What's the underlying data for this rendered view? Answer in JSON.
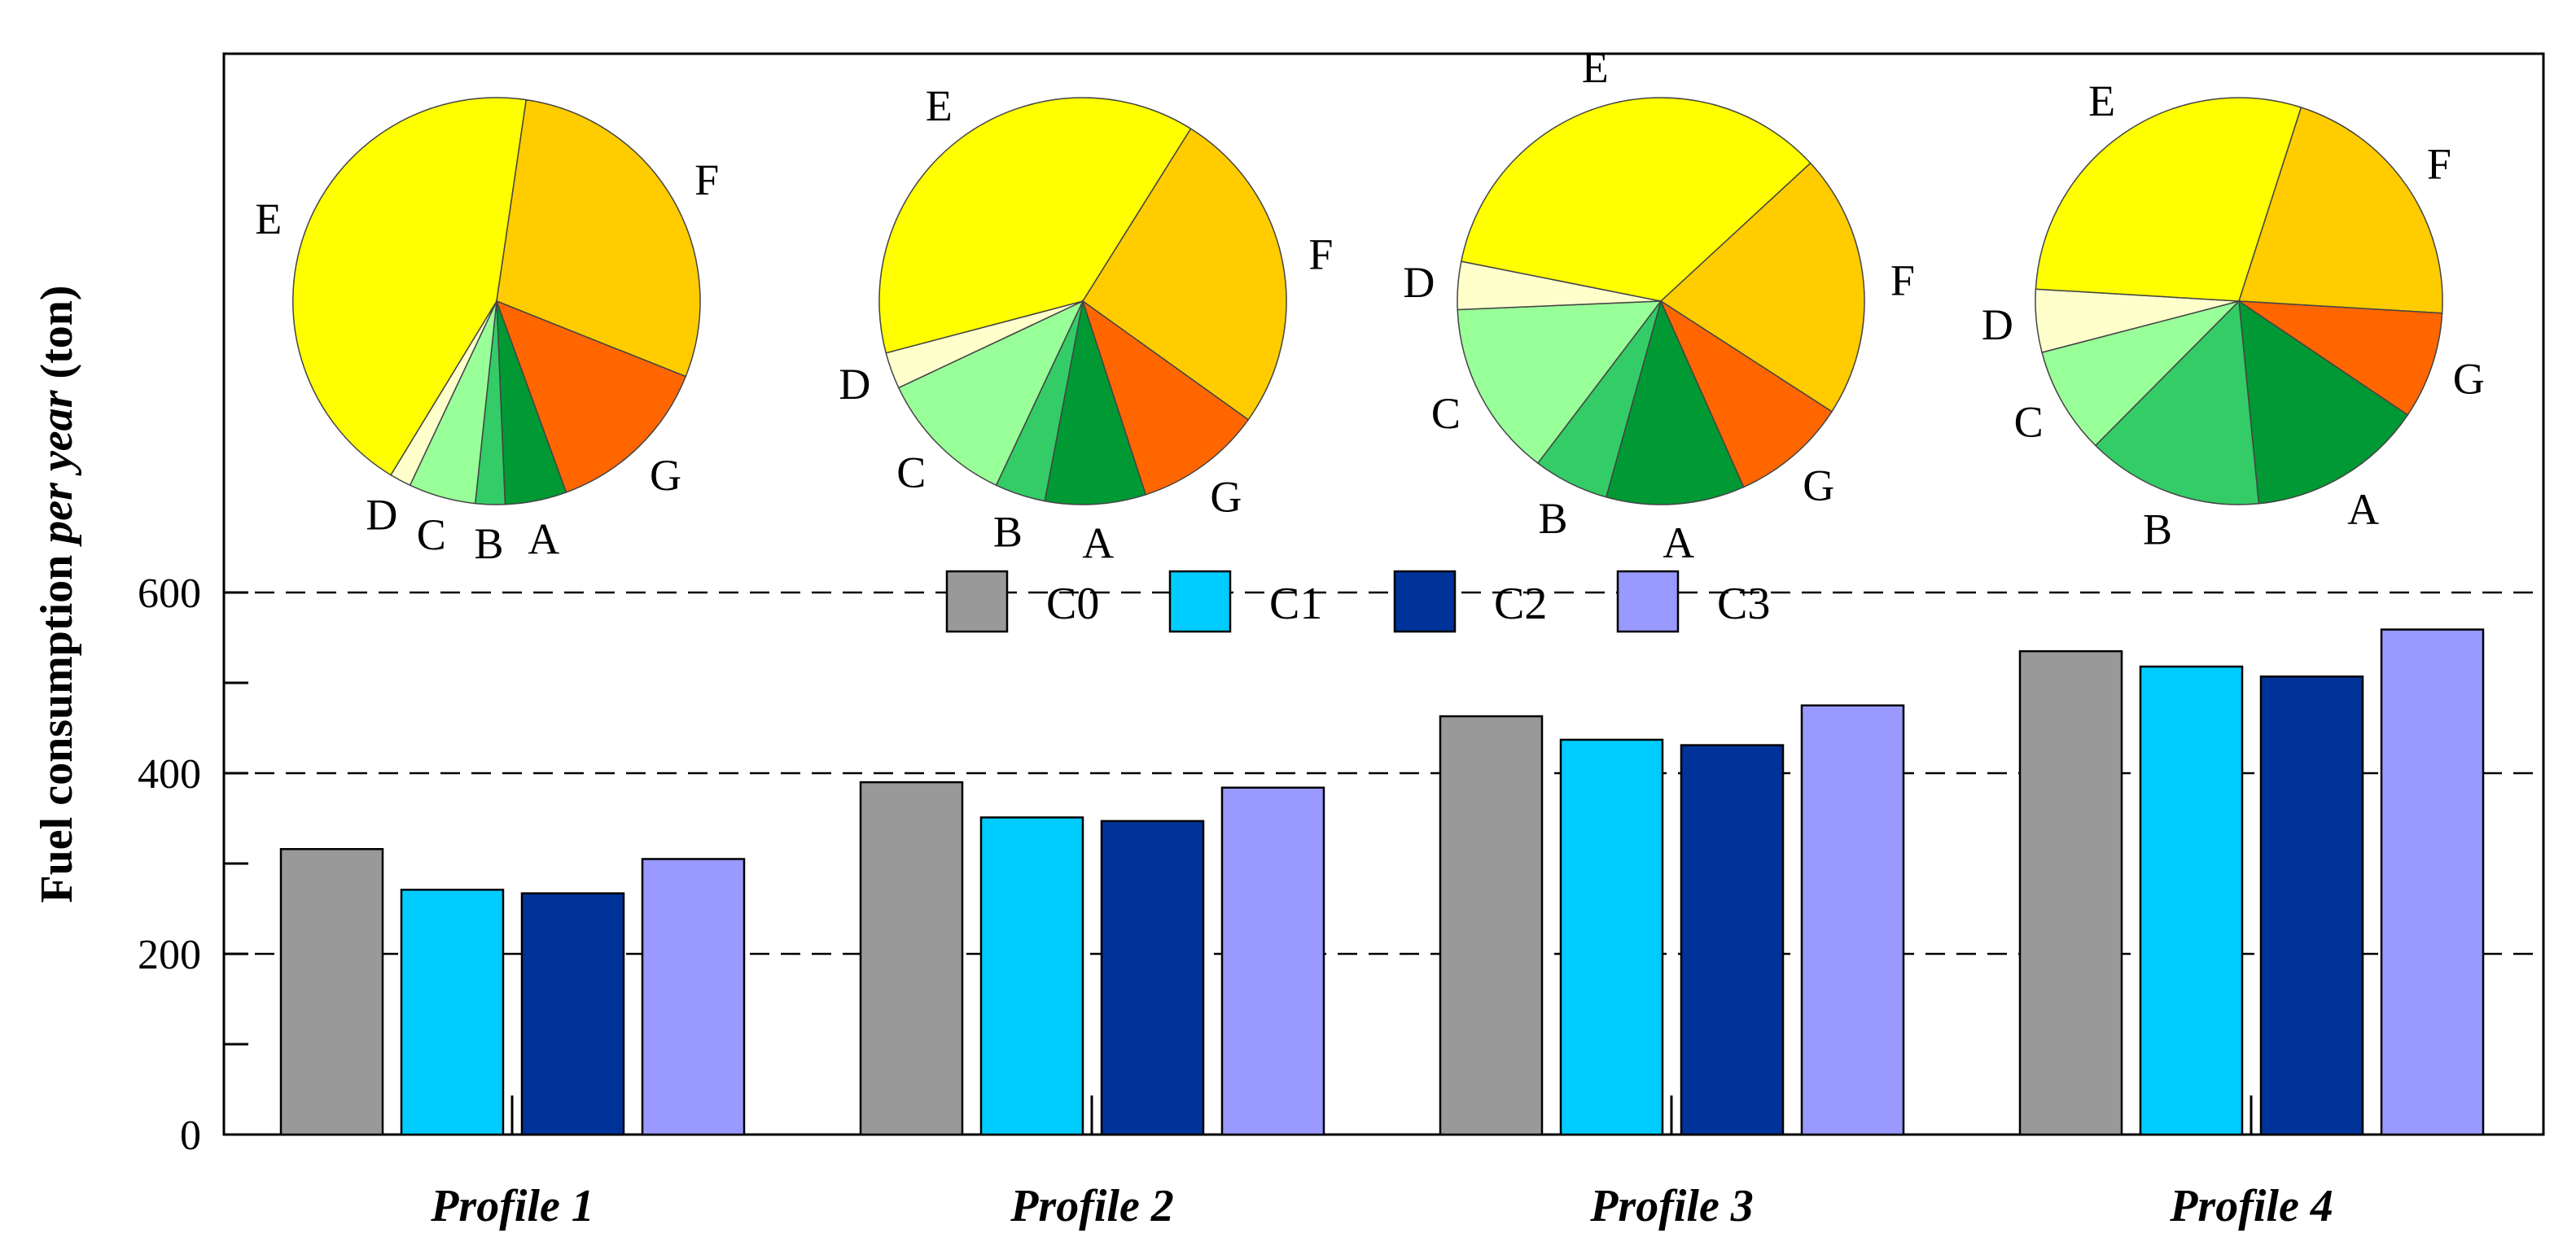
{
  "colors": {
    "C0": "#999999",
    "C1": "#00ccff",
    "C2": "#003399",
    "C3": "#9999ff",
    "A": "#009933",
    "B": "#33cc66",
    "C": "#99ff99",
    "D": "#ffffcc",
    "E": "#ffff00",
    "F": "#ffcc00",
    "G": "#ff6600"
  },
  "chart_data": [
    {
      "type": "bar",
      "categories": [
        "Profile 1",
        "Profile 2",
        "Profile 3",
        "Profile 4"
      ],
      "series": [
        {
          "name": "C0",
          "values": [
            316,
            390,
            463,
            535
          ]
        },
        {
          "name": "C1",
          "values": [
            271,
            351,
            437,
            518
          ]
        },
        {
          "name": "C2",
          "values": [
            267,
            347,
            431,
            507
          ]
        },
        {
          "name": "C3",
          "values": [
            305,
            384,
            475,
            559
          ]
        }
      ],
      "ylabel_bold": "Fuel consumption",
      "ylabel_italic": "per year",
      "ylabel_unit": "(ton)",
      "ylim": [
        0,
        600
      ],
      "yticks": [
        0,
        200,
        400,
        600
      ],
      "grid": "dashed horizontal at 200, 400, 600",
      "legend": {
        "placement": "top-center",
        "entries": [
          "C0",
          "C1",
          "C2",
          "C3"
        ]
      }
    },
    {
      "type": "pie",
      "profile": "Profile 1",
      "labels": [
        "A",
        "B",
        "C",
        "D",
        "E",
        "F",
        "G"
      ],
      "values": [
        4.6,
        2.2,
        5.0,
        1.6,
        41.0,
        27.0,
        12.6
      ]
    },
    {
      "type": "pie",
      "profile": "Profile 2",
      "labels": [
        "A",
        "B",
        "C",
        "D",
        "E",
        "F",
        "G"
      ],
      "values": [
        8.0,
        4.0,
        11.0,
        2.9,
        38.0,
        26.0,
        10.1
      ]
    },
    {
      "type": "pie",
      "profile": "Profile 3",
      "labels": [
        "A",
        "B",
        "C",
        "D",
        "E",
        "F",
        "G"
      ],
      "values": [
        11.0,
        6.0,
        14.0,
        3.8,
        35.0,
        21.0,
        9.2
      ]
    },
    {
      "type": "pie",
      "profile": "Profile 4",
      "labels": [
        "A",
        "B",
        "C",
        "D",
        "E",
        "F",
        "G"
      ],
      "values": [
        14.0,
        14.0,
        8.5,
        5.0,
        29.0,
        21.0,
        8.5
      ]
    }
  ]
}
